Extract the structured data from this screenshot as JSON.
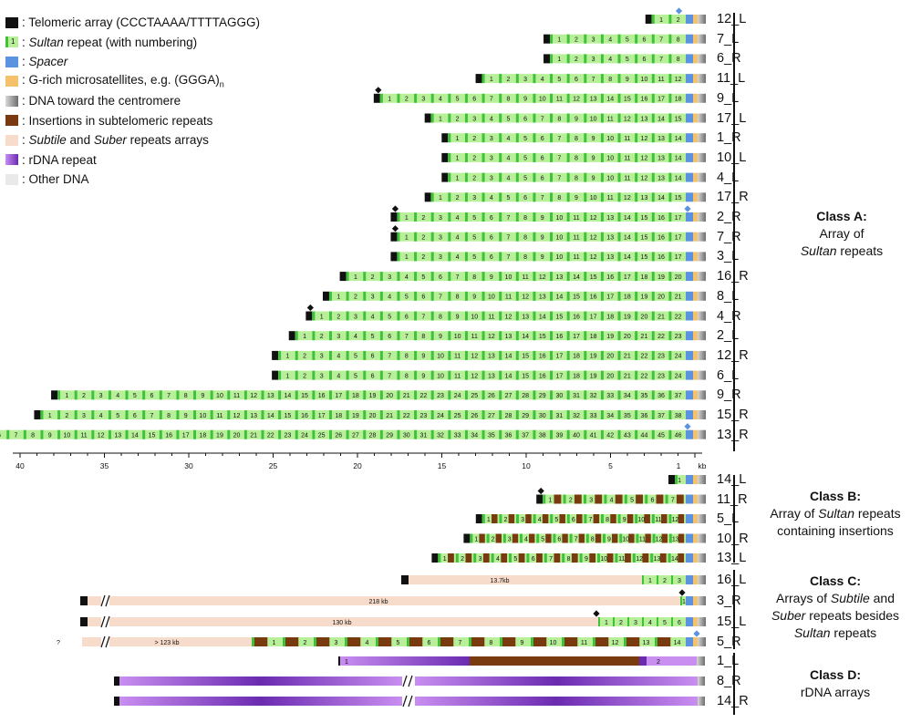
{
  "legend": [
    {
      "icon": "telomere-swatch",
      "text": ": Telomeric array (CCCTAAAA/TTTTAGGG)"
    },
    {
      "icon": "sultan-swatch",
      "num": "1",
      "italic": "Sultan",
      "text": " repeat (with numbering)"
    },
    {
      "icon": "spacer-swatch",
      "italic": "Spacer",
      "text": ""
    },
    {
      "icon": "g-rich-swatch",
      "text": ": G-rich microsatellites, e.g. (GGGA)",
      "sub": "n"
    },
    {
      "icon": "centromere-gradient-swatch",
      "text": ": DNA toward the centromere"
    },
    {
      "icon": "insertion-swatch",
      "text": ": Insertions in subtelomeric repeats"
    },
    {
      "icon": "subtile-swatch",
      "italic": "Subtile",
      "text": " and ",
      "italic2": "Suber",
      "text2": " repeats arrays"
    },
    {
      "icon": "rdna-swatch",
      "text": ": rDNA repeat"
    },
    {
      "icon": "other-dna-swatch",
      "text": ": Other DNA"
    }
  ],
  "colors": {
    "telomere": "#111111",
    "sultan_light": "#b8f09a",
    "sultan_dark": "#3fc23a",
    "spacer": "#5b93e0",
    "g_rich": "#f5c26b",
    "insertion": "#7a3a10",
    "subtile": "#f7dccb",
    "rdna_dark": "#6a2bb0",
    "rdna_light": "#c88ef0",
    "other": "#e9e9e9",
    "marker_black": "#111111",
    "marker_blue": "#5b93e0"
  },
  "classA": [
    {
      "label": "12_L",
      "n": 2,
      "tel": true,
      "diamond": "blue"
    },
    {
      "label": "7_L",
      "n": 8,
      "tel": true
    },
    {
      "label": "6_R",
      "n": 8,
      "tel": true
    },
    {
      "label": "11_L",
      "n": 12,
      "tel": true
    },
    {
      "label": "9_L",
      "n": 18,
      "tel": true,
      "diamond": "black"
    },
    {
      "label": "17_L",
      "n": 15,
      "tel": true
    },
    {
      "label": "1_R",
      "n": 14,
      "tel": true
    },
    {
      "label": "10_L",
      "n": 14,
      "tel": true
    },
    {
      "label": "4_L",
      "n": 14,
      "tel": true
    },
    {
      "label": "17_R",
      "n": 15,
      "tel": true
    },
    {
      "label": "2_R",
      "n": 17,
      "tel": true,
      "diamond": "black",
      "diamond2": "blue"
    },
    {
      "label": "7_R",
      "n": 17,
      "tel": true,
      "diamond": "black"
    },
    {
      "label": "3_L",
      "n": 17,
      "tel": true
    },
    {
      "label": "16_R",
      "n": 20,
      "tel": true
    },
    {
      "label": "8_L",
      "n": 21,
      "tel": true
    },
    {
      "label": "4_R",
      "n": 22,
      "tel": true,
      "diamond": "black"
    },
    {
      "label": "2_L",
      "n": 23,
      "tel": true
    },
    {
      "label": "12_R",
      "n": 24,
      "tel": true
    },
    {
      "label": "6_L",
      "n": 24,
      "tel": true
    },
    {
      "label": "9_R",
      "n": 37,
      "tel": true
    },
    {
      "label": "15_R",
      "n": 38,
      "tel": true
    },
    {
      "label": "13_R",
      "n": 46,
      "tel": true,
      "diamond": "black",
      "diamond2": "blue"
    }
  ],
  "axis": {
    "ticks": [
      "40",
      "35",
      "30",
      "25",
      "20",
      "15",
      "10",
      "5",
      "1"
    ],
    "unit": "kb"
  },
  "classB": [
    {
      "label": "14_L",
      "n": 1
    },
    {
      "label": "11_R",
      "n": 7,
      "diamond": "black"
    },
    {
      "label": "5_L",
      "n": 12
    },
    {
      "label": "10_R",
      "n": 13
    },
    {
      "label": "13_L",
      "n": 14
    }
  ],
  "classC": [
    {
      "label": "16_L",
      "size": "13.7kb"
    },
    {
      "label": "3_R",
      "size": "218 kb"
    },
    {
      "label": "15_L",
      "size": "130 kb"
    },
    {
      "label": "5_R",
      "size": "> 123 kb",
      "prefix": "?"
    }
  ],
  "classD": [
    {
      "label": "1_L"
    },
    {
      "label": "8_R"
    },
    {
      "label": "14_R"
    }
  ],
  "class_labels": {
    "A": {
      "title": "Class A:",
      "line2": "Array of",
      "line3": "Sultan repeats"
    },
    "B": {
      "title": "Class B:",
      "line2": "Array of Sultan repeats",
      "line3": "containing insertions"
    },
    "C": {
      "title": "Class C:",
      "line2": "Arrays of Subtile and",
      "line3": "Suber repeats besides",
      "line4": "Sultan repeats"
    },
    "D": {
      "title": "Class D:",
      "line2": "rDNA arrays"
    }
  }
}
